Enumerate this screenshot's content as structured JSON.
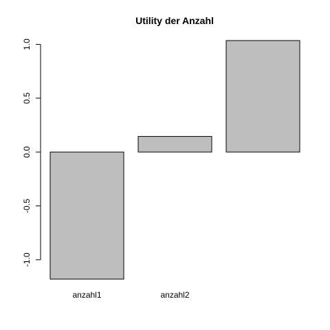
{
  "chart_data": {
    "type": "bar",
    "title": "Utility der Anzahl",
    "xlabel": "",
    "ylabel": "",
    "categories": [
      "anzahl1",
      "anzahl2",
      ""
    ],
    "values": [
      -1.18,
      0.145,
      1.035
    ],
    "ylim": [
      -1.18,
      1.035
    ],
    "yticks": [
      -1.0,
      -0.5,
      0.0,
      0.5,
      1.0
    ],
    "ytick_labels": [
      "-1.0",
      "-0.5",
      "0.0",
      "0.5",
      "1.0"
    ],
    "bar_color": "#bebebe",
    "grid": false,
    "legend": "none"
  }
}
